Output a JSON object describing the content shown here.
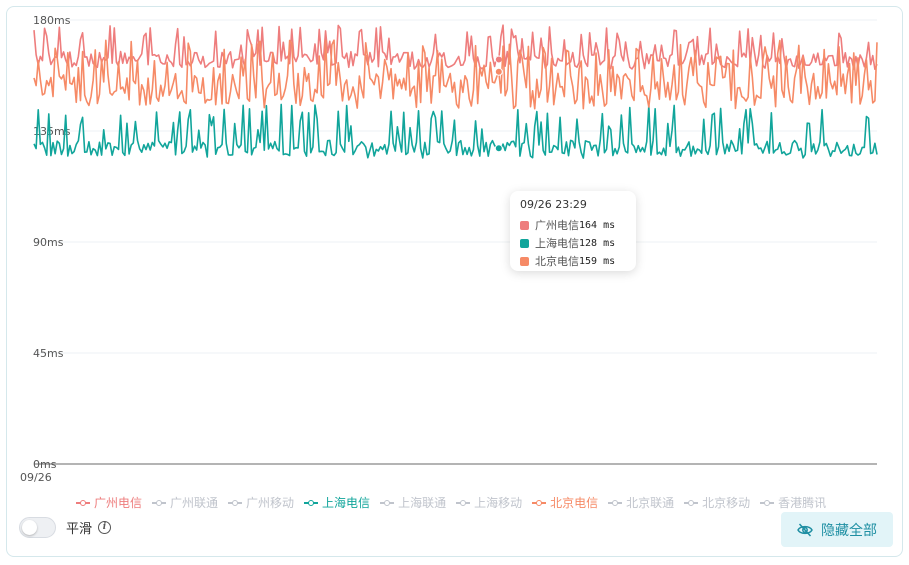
{
  "chart_data": {
    "type": "line",
    "y_unit": "ms",
    "ylim": [
      0,
      180
    ],
    "y_ticks": [
      "0ms",
      "45ms",
      "90ms",
      "135ms",
      "180ms"
    ],
    "x_tick_label": "09/26",
    "points_per_series": 400,
    "series": [
      {
        "name": "广州电信",
        "color": "#ee7d7d",
        "visible": true,
        "mean": 164,
        "min": 160,
        "max": 178,
        "active_value": 164
      },
      {
        "name": "广州联通",
        "color": "#c0c4cc",
        "visible": false
      },
      {
        "name": "广州移动",
        "color": "#c0c4cc",
        "visible": false
      },
      {
        "name": "上海电信",
        "color": "#11a59b",
        "visible": true,
        "mean": 128,
        "min": 124,
        "max": 146,
        "active_value": 128
      },
      {
        "name": "上海联通",
        "color": "#c0c4cc",
        "visible": false
      },
      {
        "name": "上海移动",
        "color": "#c0c4cc",
        "visible": false
      },
      {
        "name": "北京电信",
        "color": "#f68a66",
        "visible": true,
        "mean": 152,
        "min": 144,
        "max": 172,
        "active_value": 159
      },
      {
        "name": "北京联通",
        "color": "#c0c4cc",
        "visible": false
      },
      {
        "name": "北京移动",
        "color": "#c0c4cc",
        "visible": false
      },
      {
        "name": "香港腾讯",
        "color": "#c0c4cc",
        "visible": false
      }
    ],
    "tooltip": {
      "time": "09/26 23:29",
      "active_index": 220,
      "rows": [
        {
          "name": "广州电信",
          "value": "164 ms",
          "color": "#ee7d7d"
        },
        {
          "name": "上海电信",
          "value": "128 ms",
          "color": "#11a59b"
        },
        {
          "name": "北京电信",
          "value": "159 ms",
          "color": "#f68a66"
        }
      ]
    },
    "grid": true,
    "legend_position": "bottom"
  },
  "controls": {
    "smooth_label": "平滑",
    "smooth_on": false,
    "hide_all_label": "隐藏全部"
  },
  "icons": {
    "info": "info-icon",
    "hide": "eye-off-icon"
  }
}
